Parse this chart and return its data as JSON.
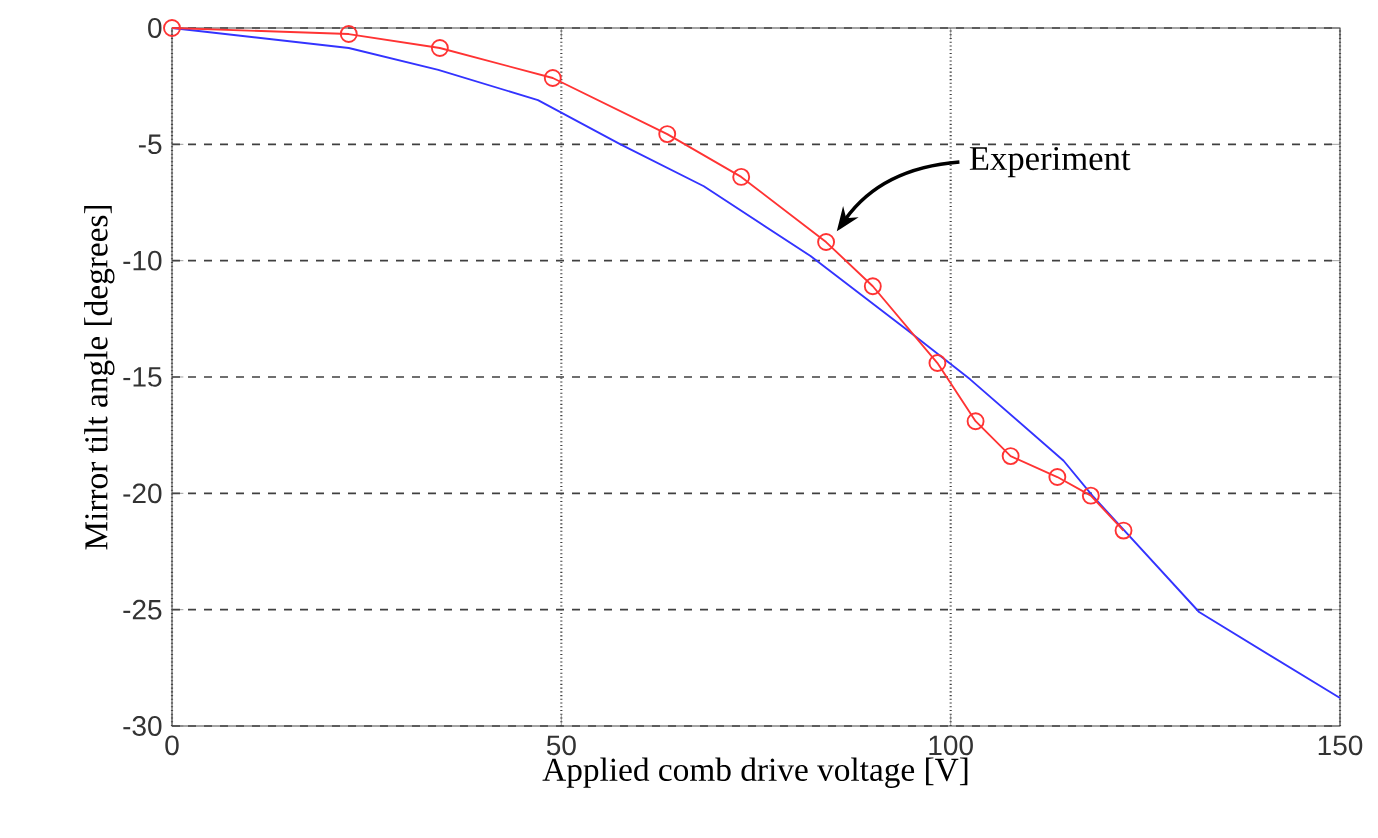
{
  "chart_data": {
    "type": "line",
    "xlabel": "Applied comb drive voltage [V]",
    "ylabel": "Mirror tilt angle [degrees]",
    "xlim": [
      0,
      150
    ],
    "xticks": [
      0,
      50,
      100,
      150
    ],
    "ylim": [
      -30,
      0
    ],
    "yticks": [
      -30,
      -25,
      -20,
      -15,
      -10,
      -5,
      0
    ],
    "grid": true,
    "series": [
      {
        "color": "#3333ff",
        "marker": "none",
        "x": [
          0,
          22.7,
          34.2,
          47,
          57.6,
          68.3,
          82,
          94.5,
          102.5,
          114.5,
          118.2,
          131.9,
          150
        ],
        "values": [
          0,
          -0.86,
          -1.8,
          -3.1,
          -5.0,
          -6.8,
          -9.8,
          -13.0,
          -15.1,
          -18.6,
          -20.1,
          -25.1,
          -28.8
        ]
      },
      {
        "name": "Experiment",
        "color": "#ff3333",
        "marker": "circle",
        "x": [
          0,
          22.7,
          34.4,
          48.9,
          63.6,
          73.1,
          84,
          90,
          98.3,
          103.2,
          107.7,
          113.7,
          118,
          122.2
        ],
        "values": [
          0,
          -0.26,
          -0.86,
          -2.15,
          -4.56,
          -6.4,
          -9.2,
          -11.1,
          -14.4,
          -16.9,
          -18.4,
          -19.3,
          -20.1,
          -21.6
        ]
      }
    ]
  }
}
